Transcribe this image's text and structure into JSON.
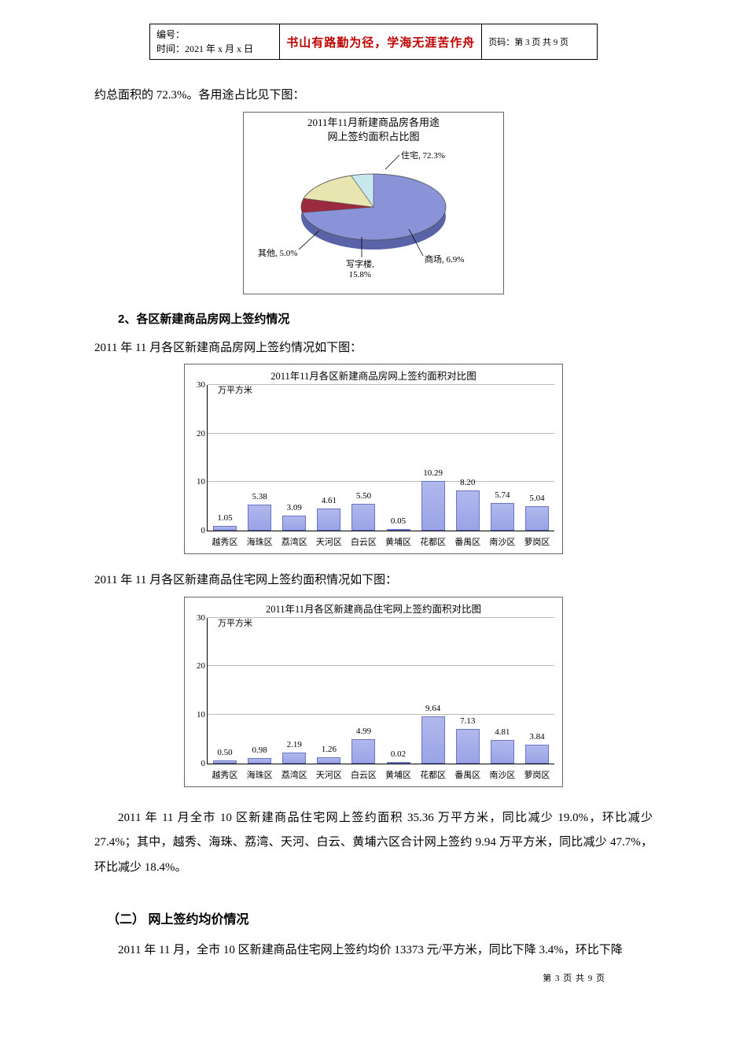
{
  "header": {
    "id_label": "编号：",
    "time_label": "时间：2021 年 x 月 x 日",
    "motto": "书山有路勤为径，学海无涯苦作舟",
    "page_label": "页码：第 3 页  共 9 页"
  },
  "texts": {
    "para0": "约总面积的 72.3%。各用途占比见下图：",
    "h_section2": "2、各区新建商品房网上签约情况",
    "para_section2_intro": "2011 年 11 月各区新建商品房网上签约情况如下图：",
    "para_chart3_intro": "2011 年 11 月各区新建商品住宅网上签约面积情况如下图：",
    "para_summary": "2011 年 11 月全市 10 区新建商品住宅网上签约面积 35.36 万平方米，同比减少 19.0%，环比减少 27.4%；其中，越秀、海珠、荔湾、天河、白云、黄埔六区合计网上签约 9.94 万平方米，同比减少 47.7%，环比减少 18.4%。",
    "h_price": "（二） 网上签约均价情况",
    "para_price": "2011 年 11 月，全市 10 区新建商品住宅网上签约均价 13373 元/平方米，同比下降 3.4%，环比下降"
  },
  "pie_chart": {
    "title_l1": "2011年11月新建商品房各用途",
    "title_l2": "网上签约面积占比图",
    "slices": [
      {
        "label": "住宅, 72.3%",
        "value": 72.3,
        "color": "#8a92d8"
      },
      {
        "label": "商场, 6.9%",
        "value": 6.9,
        "color": "#9c2a3f"
      },
      {
        "label": "写字楼, 15.8%",
        "value": 15.8,
        "color": "#e8e5b0"
      },
      {
        "label": "其他, 5.0%",
        "value": 5.0,
        "color": "#c8e8f0"
      }
    ],
    "background": "#ffffff",
    "border": "#666666"
  },
  "bar_chart_1": {
    "title": "2011年11月各区新建商品房网上签约面积对比图",
    "y_axis_label": "万平方米",
    "ylim": [
      0,
      30
    ],
    "ytick_step": 10,
    "categories": [
      "越秀区",
      "海珠区",
      "荔湾区",
      "天河区",
      "白云区",
      "黄埔区",
      "花都区",
      "番禺区",
      "南沙区",
      "萝岗区"
    ],
    "values": [
      1.05,
      5.38,
      3.09,
      4.61,
      5.5,
      0.05,
      10.29,
      8.2,
      5.74,
      5.04
    ],
    "bar_color": "#9aa4e6",
    "bar_border": "#6a75c8",
    "grid_color": "#bbbbbb",
    "background": "#ffffff"
  },
  "bar_chart_2": {
    "title": "2011年11月各区新建商品住宅网上签约面积对比图",
    "y_axis_label": "万平方米",
    "ylim": [
      0,
      30
    ],
    "ytick_step": 10,
    "categories": [
      "越秀区",
      "海珠区",
      "荔湾区",
      "天河区",
      "白云区",
      "黄埔区",
      "花都区",
      "番禺区",
      "南沙区",
      "萝岗区"
    ],
    "values": [
      0.5,
      0.98,
      2.19,
      1.26,
      4.99,
      0.02,
      9.64,
      7.13,
      4.81,
      3.84
    ],
    "bar_color": "#9aa4e6",
    "bar_border": "#6a75c8",
    "grid_color": "#bbbbbb",
    "background": "#ffffff"
  },
  "footer": "第 3 页 共 9 页"
}
